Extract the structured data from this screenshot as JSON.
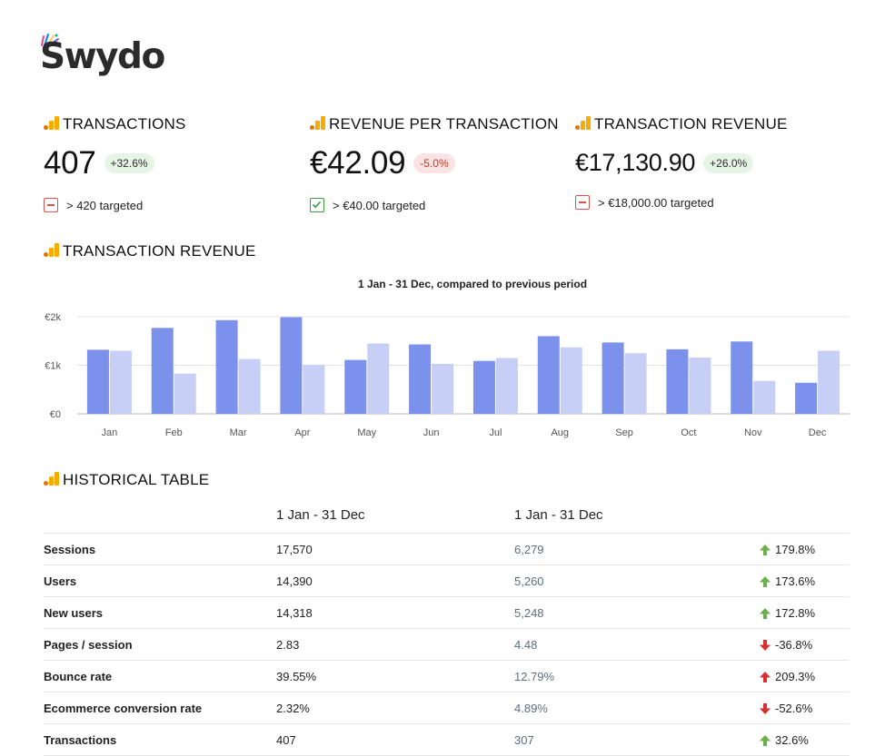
{
  "brand": {
    "logo_text": "Swydo"
  },
  "kpis": [
    {
      "title": "TRANSACTIONS",
      "value": "407",
      "delta": "+32.6%",
      "delta_direction": "positive",
      "target_text": "> 420 targeted",
      "target_met": false
    },
    {
      "title": "REVENUE PER TRANSACTION",
      "value": "€42.09",
      "delta": "-5.0%",
      "delta_direction": "negative",
      "target_text": "> €40.00 targeted",
      "target_met": true
    },
    {
      "title": "TRANSACTION REVENUE",
      "value": "€17,130.90",
      "delta": "+26.0%",
      "delta_direction": "positive",
      "target_text": "> €18,000.00 targeted",
      "target_met": false
    }
  ],
  "revenue_section": {
    "title": "TRANSACTION REVENUE"
  },
  "chart_data": {
    "type": "bar",
    "title": "1 Jan - 31 Dec, compared to previous period",
    "categories": [
      "Jan",
      "Feb",
      "Mar",
      "Apr",
      "May",
      "Jun",
      "Jul",
      "Aug",
      "Sep",
      "Oct",
      "Nov",
      "Dec"
    ],
    "series": [
      {
        "values": [
          1320,
          1770,
          1930,
          1990,
          1110,
          1430,
          1090,
          1600,
          1470,
          1330,
          1490,
          640
        ],
        "color": "#7b91ec"
      },
      {
        "values": [
          1300,
          830,
          1130,
          1010,
          1450,
          1030,
          1150,
          1370,
          1250,
          1160,
          680,
          1300
        ],
        "color": "#c7cff7"
      }
    ],
    "yticks": [
      "€0",
      "€1k",
      "€2k"
    ],
    "ylim": [
      0,
      2000
    ],
    "grid": true
  },
  "historical_section": {
    "title": "HISTORICAL TABLE"
  },
  "historical_table": {
    "headers": {
      "current": "1 Jan - 31 Dec",
      "previous": "1 Jan - 31 Dec"
    },
    "rows": [
      {
        "label": "Sessions",
        "current": "17,570",
        "previous": "6,279",
        "change": "179.8%",
        "trend": "up-good"
      },
      {
        "label": "Users",
        "current": "14,390",
        "previous": "5,260",
        "change": "173.6%",
        "trend": "up-good"
      },
      {
        "label": "New users",
        "current": "14,318",
        "previous": "5,248",
        "change": "172.8%",
        "trend": "up-good"
      },
      {
        "label": "Pages / session",
        "current": "2.83",
        "previous": "4.48",
        "change": "-36.8%",
        "trend": "down-bad"
      },
      {
        "label": "Bounce rate",
        "current": "39.55%",
        "previous": "12.79%",
        "change": "209.3%",
        "trend": "up-bad"
      },
      {
        "label": "Ecommerce conversion rate",
        "current": "2.32%",
        "previous": "4.89%",
        "change": "-52.6%",
        "trend": "down-bad"
      },
      {
        "label": "Transactions",
        "current": "407",
        "previous": "307",
        "change": "32.6%",
        "trend": "up-good"
      }
    ]
  },
  "colors": {
    "good": "#6ab04c",
    "bad": "#d63031",
    "bar_current": "#7b91ec",
    "bar_previous": "#c7cff7"
  }
}
